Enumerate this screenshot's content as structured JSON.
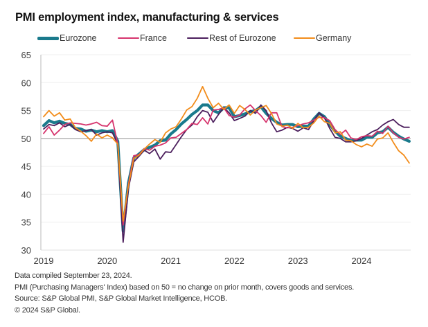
{
  "chart_data": {
    "type": "line",
    "title": "PMI employment index, manufacturing & services",
    "xlabel": "",
    "ylabel": "",
    "ylim": [
      30,
      65
    ],
    "yticks": [
      30,
      35,
      40,
      45,
      50,
      55,
      60,
      65
    ],
    "xtick_labels": [
      "2019",
      "2020",
      "2021",
      "2022",
      "2023",
      "2024"
    ],
    "x_start": "2019-01",
    "x_end": "2024-09",
    "frequency": "monthly",
    "reference_line": 50,
    "grid": true,
    "legend_position": "top",
    "series": [
      {
        "name": "Eurozone",
        "color": "#1a7a8c",
        "values": [
          52.3,
          53.2,
          52.8,
          53.1,
          52.7,
          52.5,
          51.8,
          51.7,
          51.3,
          51.5,
          51.2,
          51.4,
          51.2,
          51.4,
          49.5,
          33.4,
          42.0,
          46.5,
          47.2,
          48.0,
          48.4,
          48.8,
          49.6,
          49.7,
          50.8,
          51.6,
          52.6,
          53.4,
          54.3,
          55.0,
          56.0,
          56.0,
          55.0,
          54.6,
          55.5,
          55.5,
          53.9,
          54.1,
          54.4,
          54.8,
          55.0,
          55.7,
          54.5,
          53.6,
          52.9,
          52.4,
          52.5,
          52.5,
          52.1,
          52.2,
          52.2,
          53.5,
          54.5,
          53.9,
          52.5,
          51.3,
          50.4,
          50.0,
          49.6,
          49.7,
          49.7,
          50.2,
          50.2,
          51.0,
          51.2,
          52.0,
          51.1,
          50.4,
          49.9,
          49.5
        ]
      },
      {
        "name": "France",
        "color": "#d6336c",
        "values": [
          50.9,
          52.1,
          50.6,
          51.5,
          52.5,
          52.8,
          52.7,
          52.6,
          52.4,
          52.6,
          52.9,
          52.3,
          52.2,
          53.3,
          49.0,
          34.5,
          41.8,
          46.9,
          47.1,
          48.2,
          47.9,
          48.6,
          48.8,
          49.2,
          50.1,
          50.2,
          50.9,
          51.6,
          52.7,
          52.5,
          53.7,
          52.6,
          55.1,
          55.2,
          55.5,
          54.1,
          53.8,
          54.2,
          55.3,
          56.0,
          55.0,
          54.1,
          52.9,
          54.6,
          54.6,
          52.1,
          51.9,
          52.0,
          52.3,
          52.6,
          52.8,
          53.3,
          53.8,
          53.7,
          53.2,
          51.6,
          50.7,
          51.5,
          50.1,
          49.8,
          50.3,
          50.5,
          50.4,
          51.3,
          50.9,
          52.2,
          51.0,
          50.2,
          49.9,
          50.2
        ]
      },
      {
        "name": "Rest of Eurozone",
        "color": "#4b1e5c",
        "values": [
          51.7,
          52.5,
          52.3,
          52.8,
          52.1,
          52.5,
          51.6,
          51.2,
          51.4,
          51.6,
          50.6,
          51.0,
          51.2,
          51.0,
          49.0,
          31.4,
          41.0,
          45.8,
          46.8,
          47.9,
          47.3,
          48.1,
          46.3,
          47.6,
          47.5,
          48.9,
          50.3,
          51.6,
          52.4,
          53.9,
          55.0,
          54.7,
          52.9,
          54.3,
          55.5,
          54.6,
          53.2,
          53.6,
          54.0,
          55.0,
          54.5,
          56.0,
          55.0,
          52.8,
          51.2,
          51.5,
          52.0,
          51.8,
          51.3,
          51.9,
          51.6,
          53.2,
          54.6,
          53.7,
          51.8,
          50.2,
          50.0,
          49.4,
          49.4,
          49.6,
          50.0,
          50.6,
          51.2,
          51.6,
          52.4,
          53.0,
          53.4,
          52.5,
          52.0,
          52.0
        ]
      },
      {
        "name": "Germany",
        "color": "#f28c1a",
        "values": [
          53.9,
          55.0,
          54.0,
          54.6,
          53.3,
          53.5,
          51.9,
          51.3,
          50.5,
          49.5,
          50.8,
          50.1,
          50.6,
          50.1,
          49.0,
          35.2,
          41.5,
          46.4,
          47.0,
          48.1,
          49.0,
          49.8,
          49.3,
          51.0,
          51.7,
          52.1,
          53.5,
          55.1,
          55.7,
          57.2,
          59.3,
          57.2,
          55.5,
          56.3,
          55.2,
          56.0,
          54.5,
          55.9,
          55.2,
          54.2,
          55.1,
          55.5,
          55.9,
          54.5,
          52.6,
          52.2,
          52.4,
          51.8,
          52.7,
          51.9,
          52.0,
          52.8,
          54.0,
          53.0,
          52.7,
          51.0,
          51.2,
          49.7,
          49.6,
          48.9,
          48.5,
          49.0,
          48.6,
          49.9,
          50.1,
          51.0,
          49.3,
          47.8,
          47.0,
          45.6
        ]
      }
    ]
  },
  "footer": {
    "line1": "Data compiled September 23, 2024.",
    "line2": "PMI (Purchasing Managers' Index) based on 50 = no change on prior month, covers goods and services.",
    "line3": "Source: S&P Global PMI, S&P Global Market Intelligence, HCOB.",
    "line4": "© 2024 S&P Global."
  }
}
